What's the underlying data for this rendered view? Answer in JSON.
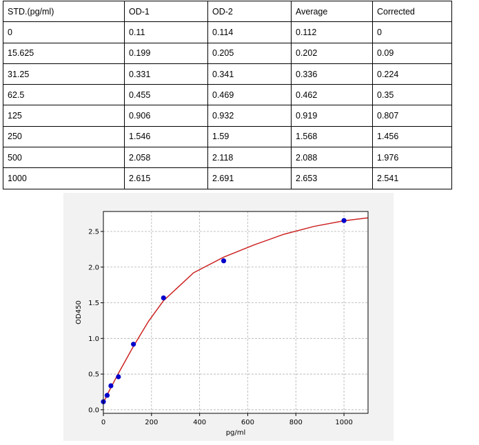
{
  "table": {
    "headers": [
      "STD.(pg/ml)",
      "OD-1",
      "OD-2",
      "Average",
      "Corrected"
    ],
    "rows": [
      [
        "0",
        "0.11",
        "0.114",
        "0.112",
        "0"
      ],
      [
        "15.625",
        "0.199",
        "0.205",
        "0.202",
        "0.09"
      ],
      [
        "31.25",
        "0.331",
        "0.341",
        "0.336",
        "0.224"
      ],
      [
        "62.5",
        "0.455",
        "0.469",
        "0.462",
        "0.35"
      ],
      [
        "125",
        "0.906",
        "0.932",
        "0.919",
        "0.807"
      ],
      [
        "250",
        "1.546",
        "1.59",
        "1.568",
        "1.456"
      ],
      [
        "500",
        "2.058",
        "2.118",
        "2.088",
        "1.976"
      ],
      [
        "1000",
        "2.615",
        "2.691",
        "2.653",
        "2.541"
      ]
    ]
  },
  "chart_data": {
    "type": "scatter",
    "title": "",
    "xlabel": "pg/ml",
    "ylabel": "OD450",
    "xlim": [
      0,
      1100
    ],
    "ylim": [
      -0.05,
      2.78
    ],
    "xticks": [
      0,
      200,
      400,
      600,
      800,
      1000
    ],
    "xtick_labels": [
      "0",
      "200",
      "400",
      "600",
      "800",
      "1000"
    ],
    "yticks": [
      0.0,
      0.5,
      1.0,
      1.5,
      2.0,
      2.5
    ],
    "ytick_labels": [
      "0.0",
      "0.5",
      "1.0",
      "1.5",
      "2.0",
      "2.5"
    ],
    "grid": true,
    "points": {
      "x": [
        0,
        15.625,
        31.25,
        62.5,
        125,
        250,
        500,
        1000
      ],
      "y": [
        0.112,
        0.202,
        0.336,
        0.462,
        0.919,
        1.568,
        2.088,
        2.653
      ],
      "color": "#0000cc"
    },
    "fit_curve": {
      "color": "#cc2222",
      "x": [
        0,
        15.625,
        31.25,
        62.5,
        125,
        187.5,
        250,
        375,
        500,
        625,
        750,
        875,
        1000,
        1100
      ],
      "y": [
        0.1,
        0.21,
        0.31,
        0.51,
        0.89,
        1.24,
        1.53,
        1.92,
        2.14,
        2.31,
        2.46,
        2.57,
        2.65,
        2.69
      ]
    }
  }
}
